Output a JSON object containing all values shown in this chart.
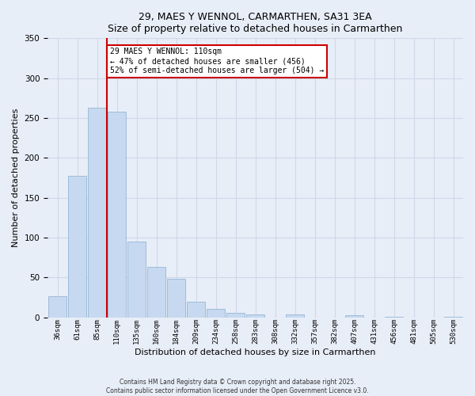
{
  "title": "29, MAES Y WENNOL, CARMARTHEN, SA31 3EA",
  "subtitle": "Size of property relative to detached houses in Carmarthen",
  "xlabel": "Distribution of detached houses by size in Carmarthen",
  "ylabel": "Number of detached properties",
  "bar_labels": [
    "36sqm",
    "61sqm",
    "85sqm",
    "110sqm",
    "135sqm",
    "160sqm",
    "184sqm",
    "209sqm",
    "234sqm",
    "258sqm",
    "283sqm",
    "308sqm",
    "332sqm",
    "357sqm",
    "382sqm",
    "407sqm",
    "431sqm",
    "456sqm",
    "481sqm",
    "505sqm",
    "530sqm"
  ],
  "bar_values": [
    27,
    178,
    263,
    258,
    95,
    63,
    48,
    20,
    11,
    6,
    4,
    0,
    4,
    0,
    0,
    3,
    0,
    1,
    0,
    0,
    1
  ],
  "bar_color": "#c6d9f0",
  "bar_edge_color": "#a0bcd8",
  "vline_x": 2.5,
  "vline_color": "#cc0000",
  "annotation_text": "29 MAES Y WENNOL: 110sqm\n← 47% of detached houses are smaller (456)\n52% of semi-detached houses are larger (504) →",
  "annotation_box_color": "#ffffff",
  "annotation_box_edge_color": "#cc0000",
  "ylim": [
    0,
    350
  ],
  "yticks": [
    0,
    50,
    100,
    150,
    200,
    250,
    300,
    350
  ],
  "grid_color": "#d0d8e8",
  "background_color": "#e8eef8",
  "footer_line1": "Contains HM Land Registry data © Crown copyright and database right 2025.",
  "footer_line2": "Contains public sector information licensed under the Open Government Licence v3.0."
}
